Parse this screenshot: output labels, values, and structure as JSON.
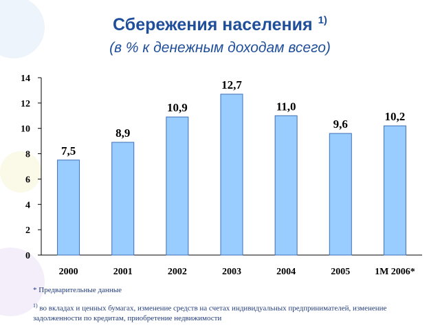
{
  "chart_data": {
    "type": "bar",
    "title": "Сбережения населения",
    "title_note": "1)",
    "subtitle": "(в % к денежным доходам всего)",
    "categories": [
      "2000",
      "2001",
      "2002",
      "2003",
      "2004",
      "2005",
      "1М 2006*"
    ],
    "values": [
      7.5,
      8.9,
      10.9,
      12.7,
      11.0,
      9.6,
      10.2
    ],
    "value_labels": [
      "7,5",
      "8,9",
      "10,9",
      "12,7",
      "11,0",
      "9,6",
      "10,2"
    ],
    "color": "#99ccff",
    "ylim": [
      0,
      14
    ],
    "yticks": [
      0,
      2,
      4,
      6,
      8,
      10,
      12,
      14
    ],
    "footnotes": {
      "preliminary": "* Предварительные данные",
      "mark": "1)",
      "text": "во вкладах и ценных бумагах, изменение средств на счетах индивидуальных предпринимателей, изменение задолженности по кредитам, приобретение недвижимости"
    }
  }
}
